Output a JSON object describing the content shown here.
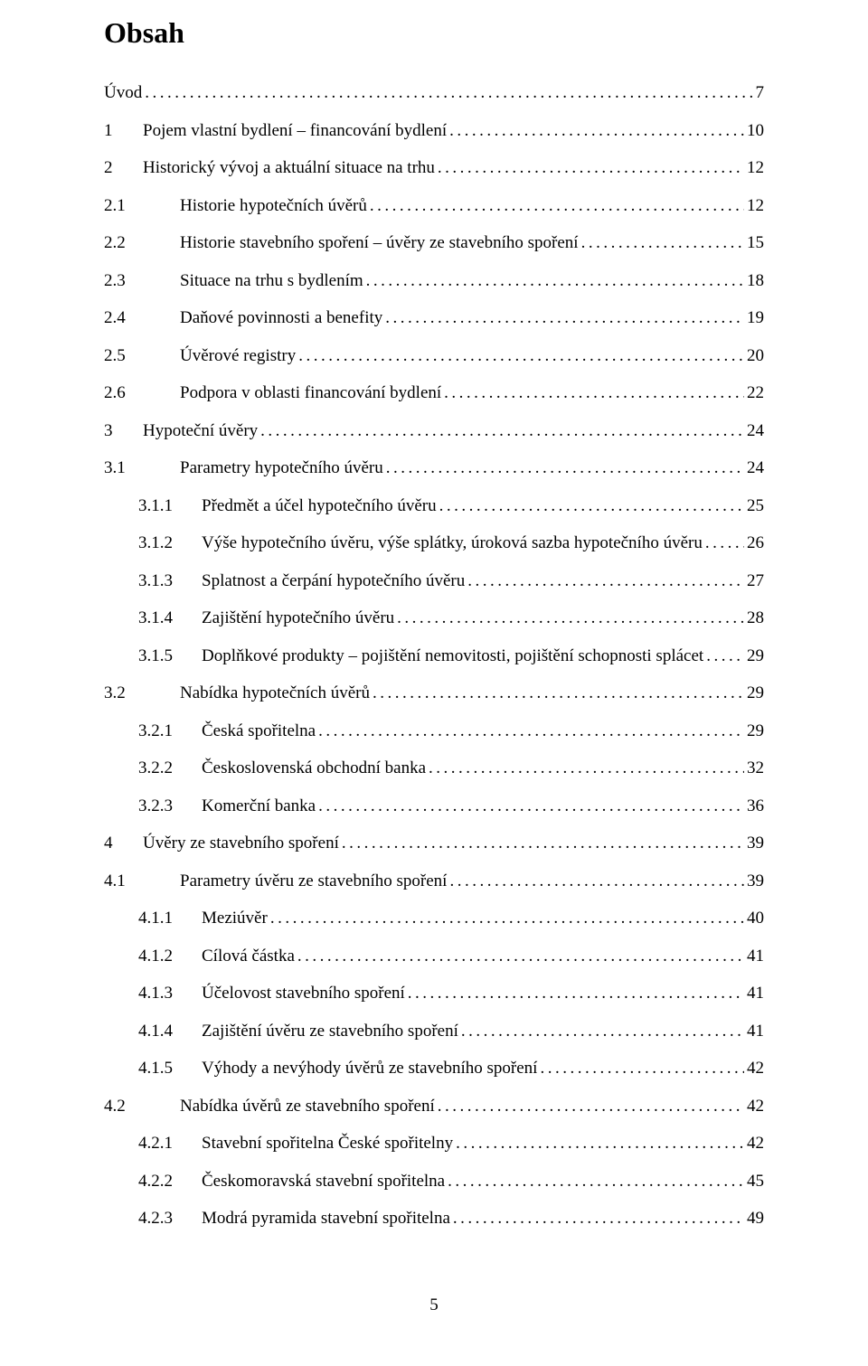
{
  "heading": "Obsah",
  "footer_page": "5",
  "gaps": {
    "l0_num_l0_col": 43,
    "l1_num_l1_col": 57,
    "l2_num_l2_col": 47,
    "margin_l0": 0,
    "margin_l1": 0,
    "margin_l2": 38
  },
  "toc": [
    {
      "level": 0,
      "num": "",
      "title": "Úvod",
      "page": "7",
      "num_override_gap": 0
    },
    {
      "level": 0,
      "num": "1",
      "title": "Pojem vlastní bydlení – financování bydlení",
      "page": "10"
    },
    {
      "level": 0,
      "num": "2",
      "title": "Historický vývoj a aktuální situace na trhu",
      "page": "12"
    },
    {
      "level": 1,
      "num": "2.1",
      "title": "Historie hypotečních úvěrů",
      "page": "12"
    },
    {
      "level": 1,
      "num": "2.2",
      "title": "Historie stavebního spoření – úvěry ze stavebního spoření",
      "page": "15"
    },
    {
      "level": 1,
      "num": "2.3",
      "title": "Situace na trhu s bydlením",
      "page": "18"
    },
    {
      "level": 1,
      "num": "2.4",
      "title": "Daňové povinnosti a benefity",
      "page": "19"
    },
    {
      "level": 1,
      "num": "2.5",
      "title": "Úvěrové registry",
      "page": "20"
    },
    {
      "level": 1,
      "num": "2.6",
      "title": "Podpora v oblasti financování bydlení",
      "page": "22"
    },
    {
      "level": 0,
      "num": "3",
      "title": "Hypoteční úvěry",
      "page": "24"
    },
    {
      "level": 1,
      "num": "3.1",
      "title": "Parametry hypotečního úvěru",
      "page": "24"
    },
    {
      "level": 2,
      "num": "3.1.1",
      "title": "Předmět a účel hypotečního úvěru",
      "page": "25"
    },
    {
      "level": 2,
      "num": "3.1.2",
      "title": "Výše hypotečního úvěru, výše splátky, úroková sazba hypotečního úvěru",
      "page": "26"
    },
    {
      "level": 2,
      "num": "3.1.3",
      "title": "Splatnost a čerpání hypotečního úvěru",
      "page": "27"
    },
    {
      "level": 2,
      "num": "3.1.4",
      "title": "Zajištění hypotečního úvěru",
      "page": "28"
    },
    {
      "level": 2,
      "num": "3.1.5",
      "title": "Doplňkové produkty – pojištění nemovitosti, pojištění schopnosti splácet",
      "page": "29"
    },
    {
      "level": 1,
      "num": "3.2",
      "title": "Nabídka hypotečních úvěrů",
      "page": "29"
    },
    {
      "level": 2,
      "num": "3.2.1",
      "title": "Česká spořitelna",
      "page": "29"
    },
    {
      "level": 2,
      "num": "3.2.2",
      "title": "Československá obchodní banka",
      "page": "32"
    },
    {
      "level": 2,
      "num": "3.2.3",
      "title": "Komerční banka",
      "page": "36"
    },
    {
      "level": 0,
      "num": "4",
      "title": "Úvěry ze stavebního spoření",
      "page": "39"
    },
    {
      "level": 1,
      "num": "4.1",
      "title": "Parametry úvěru ze stavebního spoření",
      "page": "39"
    },
    {
      "level": 2,
      "num": "4.1.1",
      "title": "Meziúvěr",
      "page": "40"
    },
    {
      "level": 2,
      "num": "4.1.2",
      "title": "Cílová částka",
      "page": "41"
    },
    {
      "level": 2,
      "num": "4.1.3",
      "title": "Účelovost stavebního spoření",
      "page": "41"
    },
    {
      "level": 2,
      "num": "4.1.4",
      "title": "Zajištění úvěru ze stavebního spoření",
      "page": "41"
    },
    {
      "level": 2,
      "num": "4.1.5",
      "title": "Výhody a nevýhody úvěrů ze stavebního spoření",
      "page": "42"
    },
    {
      "level": 1,
      "num": "4.2",
      "title": "Nabídka úvěrů ze stavebního spoření",
      "page": "42"
    },
    {
      "level": 2,
      "num": "4.2.1",
      "title": "Stavební spořitelna České spořitelny",
      "page": "42"
    },
    {
      "level": 2,
      "num": "4.2.2",
      "title": "Českomoravská stavební spořitelna",
      "page": "45"
    },
    {
      "level": 2,
      "num": "4.2.3",
      "title": "Modrá pyramida stavební spořitelna",
      "page": "49"
    }
  ]
}
